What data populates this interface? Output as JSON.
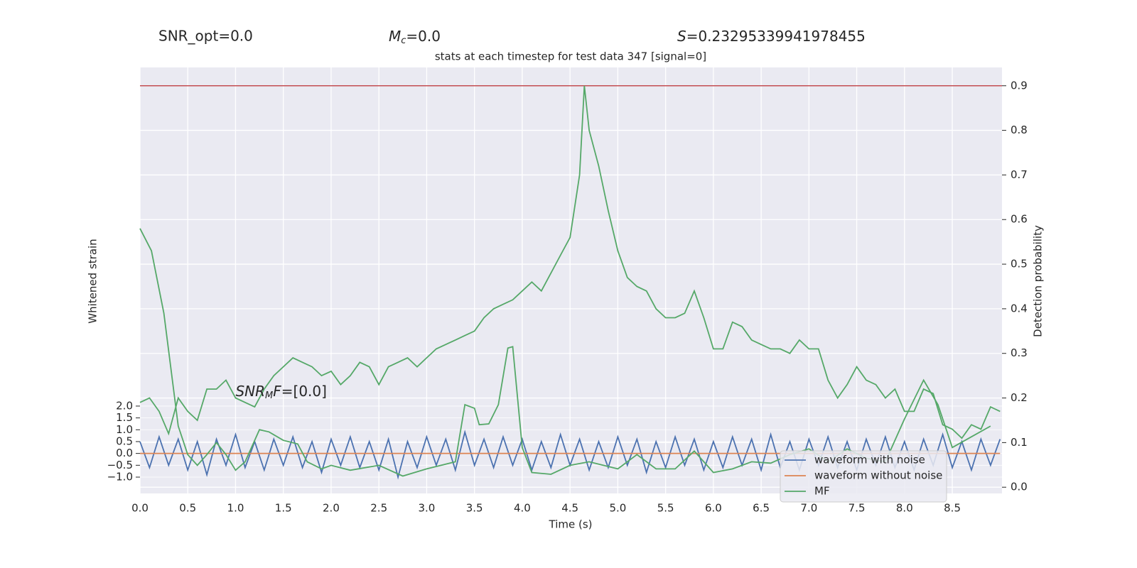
{
  "chart_data": {
    "type": "line",
    "headers": {
      "snr_opt": "SNR_opt=0.0",
      "mc": {
        "symbol": "M",
        "subscript": "c",
        "text": "=0.0"
      },
      "s": {
        "symbol": "S",
        "text": "=0.23295339941978455"
      }
    },
    "title": "stats at each timestep for test data 347 [signal=0]",
    "annotation": {
      "symbol": "SNR",
      "subscript": "M",
      "rest": "F",
      "text": "=[0.0]"
    },
    "xlabel": "Time (s)",
    "ylabel": "Whitened strain",
    "y2label": "Detection probability",
    "xlim": [
      0,
      9.02
    ],
    "xticks": [
      {
        "value": 0,
        "label": "0.0"
      },
      0.5,
      {
        "value": 1,
        "label": "1.0"
      },
      1.5,
      {
        "value": 2,
        "label": "2.0"
      },
      2.5,
      {
        "value": 3,
        "label": "3.0"
      },
      3.5,
      {
        "value": 4,
        "label": "4.0"
      },
      4.5,
      {
        "value": 5,
        "label": "5.0"
      },
      5.5,
      {
        "value": 6,
        "label": "6.0"
      },
      6.5,
      {
        "value": 7,
        "label": "7.0"
      },
      7.5,
      {
        "value": 8,
        "label": "8.0"
      },
      8.5
    ],
    "ylim": [
      -1.69,
      16.3
    ],
    "yticks": [
      {
        "value": -1,
        "label": "−1.0"
      },
      {
        "value": -0.5,
        "label": "−0.5"
      },
      {
        "value": 0,
        "label": "0.0"
      },
      0.5,
      {
        "value": 1,
        "label": "1.0"
      },
      1.5,
      {
        "value": 2,
        "label": "2.0"
      }
    ],
    "y2lim": [
      -0.014,
      0.941
    ],
    "y2ticks": [
      {
        "value": 0,
        "label": "0.0"
      },
      0.1,
      0.2,
      0.3,
      0.4,
      0.5,
      0.6,
      0.7,
      0.8,
      0.9
    ],
    "grid": true,
    "legend": "lower right",
    "hlines": [
      {
        "value": 0.9,
        "color": "#c44e52",
        "axis": "y2"
      }
    ],
    "series": [
      {
        "name": "waveform with noise",
        "color": "#4c72b0",
        "x": [
          0,
          0.1,
          0.2,
          0.3,
          0.4,
          0.5,
          0.6,
          0.7,
          0.8,
          0.9,
          1,
          1.1,
          1.2,
          1.3,
          1.4,
          1.5,
          1.6,
          1.7,
          1.8,
          1.9,
          2,
          2.1,
          2.2,
          2.3,
          2.4,
          2.5,
          2.6,
          2.7,
          2.8,
          2.9,
          3,
          3.1,
          3.2,
          3.3,
          3.4,
          3.5,
          3.6,
          3.7,
          3.8,
          3.9,
          4,
          4.1,
          4.2,
          4.3,
          4.4,
          4.5,
          4.6,
          4.7,
          4.8,
          4.9,
          5,
          5.1,
          5.2,
          5.3,
          5.4,
          5.5,
          5.6,
          5.7,
          5.8,
          5.9,
          6,
          6.1,
          6.2,
          6.3,
          6.4,
          6.5,
          6.6,
          6.7,
          6.8,
          6.9,
          7,
          7.1,
          7.2,
          7.3,
          7.4,
          7.5,
          7.6,
          7.7,
          7.8,
          7.9,
          8,
          8.1,
          8.2,
          8.3,
          8.4,
          8.5,
          8.6,
          8.7,
          8.8,
          8.9,
          9
        ],
        "values": [
          0.5,
          -0.6,
          0.7,
          -0.5,
          0.6,
          -0.7,
          0.5,
          -0.9,
          0.6,
          -0.5,
          0.8,
          -0.6,
          0.5,
          -0.7,
          0.6,
          -0.5,
          0.7,
          -0.6,
          0.5,
          -0.8,
          0.6,
          -0.5,
          0.7,
          -0.6,
          0.5,
          -0.7,
          0.6,
          -1.0,
          0.5,
          -0.6,
          0.7,
          -0.5,
          0.6,
          -0.7,
          0.9,
          -0.5,
          0.6,
          -0.6,
          0.7,
          -0.5,
          0.6,
          -0.7,
          0.5,
          -0.6,
          0.8,
          -0.5,
          0.6,
          -0.7,
          0.5,
          -0.6,
          0.7,
          -0.5,
          0.6,
          -0.8,
          0.5,
          -0.6,
          0.7,
          -0.5,
          0.6,
          -0.7,
          0.5,
          -0.6,
          0.7,
          -0.5,
          0.6,
          -0.7,
          0.8,
          -0.6,
          0.5,
          -0.7,
          0.6,
          -0.5,
          0.7,
          -0.6,
          0.5,
          -0.7,
          0.6,
          -0.5,
          0.7,
          -0.6,
          0.5,
          -0.7,
          0.6,
          -0.5,
          0.8,
          -0.6,
          0.5,
          -0.7,
          0.6,
          -0.5,
          0.6
        ]
      },
      {
        "name": "waveform without noise",
        "color": "#dd8452",
        "x": [
          0,
          9
        ],
        "values": [
          0,
          0
        ]
      },
      {
        "name": "MF",
        "color": "#55a868",
        "axis": "y2",
        "x": [
          0,
          0.12,
          0.25,
          0.4,
          0.5,
          0.6,
          0.7,
          0.8,
          0.9,
          1,
          1.1,
          1.25,
          1.35,
          1.5,
          1.65,
          1.75,
          1.9,
          2,
          2.2,
          2.5,
          2.75,
          3,
          3.3,
          3.4,
          3.5,
          3.55,
          3.65,
          3.75,
          3.85,
          3.9,
          4,
          4.1,
          4.3,
          4.5,
          4.7,
          5,
          5.2,
          5.4,
          5.6,
          5.8,
          6,
          6.2,
          6.4,
          6.6,
          6.8,
          7,
          7.2,
          7.4,
          7.6,
          7.8,
          8,
          8.2,
          8.35,
          8.5,
          8.7,
          8.9
        ],
        "values": [
          0.58,
          0.53,
          0.39,
          0.137,
          0.073,
          0.049,
          0.073,
          0.1,
          0.073,
          0.038,
          0.057,
          0.129,
          0.124,
          0.105,
          0.097,
          0.057,
          0.041,
          0.049,
          0.038,
          0.049,
          0.025,
          0.041,
          0.057,
          0.185,
          0.177,
          0.14,
          0.142,
          0.185,
          0.312,
          0.315,
          0.089,
          0.033,
          0.029,
          0.049,
          0.057,
          0.041,
          0.073,
          0.041,
          0.041,
          0.081,
          0.033,
          0.041,
          0.057,
          0.054,
          0.073,
          0.086,
          0.057,
          0.086,
          0.065,
          0.057,
          0.153,
          0.24,
          0.185,
          0.089,
          0.113,
          0.137
        ]
      },
      {
        "color": "#55a868",
        "axis": "y2",
        "x": [
          0,
          0.1,
          0.2,
          0.3,
          0.4,
          0.5,
          0.6,
          0.7,
          0.8,
          0.9,
          1,
          1.1,
          1.2,
          1.3,
          1.4,
          1.5,
          1.6,
          1.7,
          1.8,
          1.9,
          2,
          2.1,
          2.2,
          2.3,
          2.4,
          2.5,
          2.6,
          2.7,
          2.8,
          2.9,
          3,
          3.1,
          3.2,
          3.3,
          3.4,
          3.5,
          3.6,
          3.7,
          3.8,
          3.9,
          4,
          4.1,
          4.2,
          4.3,
          4.4,
          4.5,
          4.6,
          4.65,
          4.7,
          4.8,
          4.9,
          5,
          5.1,
          5.2,
          5.3,
          5.4,
          5.5,
          5.6,
          5.7,
          5.8,
          5.9,
          6,
          6.1,
          6.2,
          6.3,
          6.4,
          6.5,
          6.6,
          6.7,
          6.8,
          6.9,
          7,
          7.1,
          7.2,
          7.3,
          7.4,
          7.5,
          7.6,
          7.7,
          7.8,
          7.9,
          8,
          8.1,
          8.2,
          8.3,
          8.4,
          8.5,
          8.6,
          8.7,
          8.8,
          8.9,
          9
        ],
        "values": [
          0.19,
          0.2,
          0.17,
          0.12,
          0.2,
          0.17,
          0.15,
          0.22,
          0.22,
          0.24,
          0.2,
          0.19,
          0.18,
          0.22,
          0.25,
          0.27,
          0.29,
          0.28,
          0.27,
          0.25,
          0.26,
          0.23,
          0.25,
          0.28,
          0.27,
          0.23,
          0.27,
          0.28,
          0.29,
          0.27,
          0.29,
          0.31,
          0.32,
          0.33,
          0.34,
          0.35,
          0.38,
          0.4,
          0.41,
          0.42,
          0.44,
          0.46,
          0.44,
          0.48,
          0.52,
          0.56,
          0.7,
          0.9,
          0.8,
          0.72,
          0.62,
          0.53,
          0.47,
          0.45,
          0.44,
          0.4,
          0.38,
          0.38,
          0.39,
          0.44,
          0.38,
          0.31,
          0.31,
          0.37,
          0.36,
          0.33,
          0.32,
          0.31,
          0.31,
          0.3,
          0.33,
          0.31,
          0.31,
          0.24,
          0.2,
          0.23,
          0.27,
          0.24,
          0.23,
          0.2,
          0.22,
          0.17,
          0.17,
          0.22,
          0.21,
          0.14,
          0.13,
          0.11,
          0.14,
          0.13,
          0.18,
          0.17
        ]
      }
    ]
  }
}
